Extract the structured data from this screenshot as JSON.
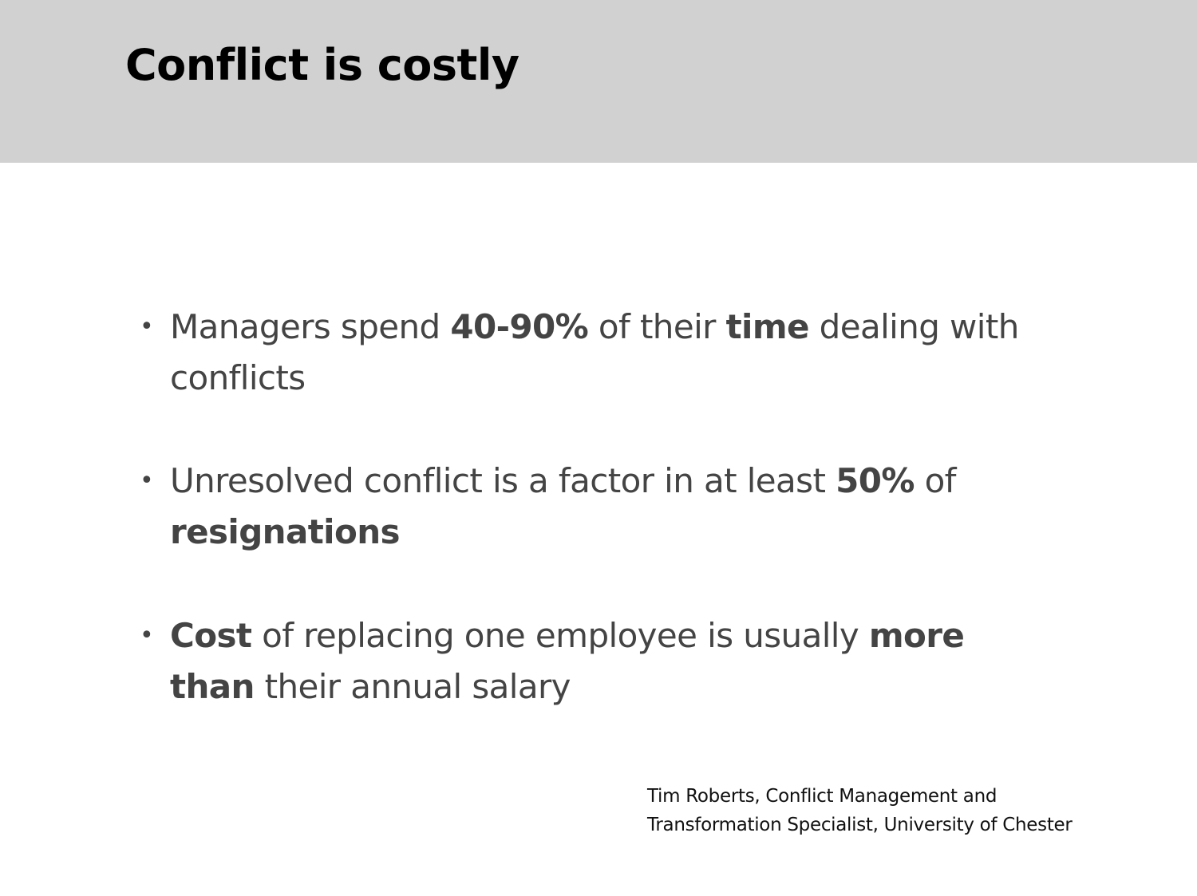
{
  "slide": {
    "title": "Conflict is costly",
    "header_color": "#d1d1d1",
    "bullets": [
      {
        "lines": [
          [
            {
              "t": "Managers spend ",
              "b": false
            },
            {
              "t": "40-90%",
              "b": true
            },
            {
              "t": " of their ",
              "b": false
            },
            {
              "t": "time",
              "b": true
            },
            {
              "t": " dealing with",
              "b": false
            }
          ],
          [
            {
              "t": "conflicts",
              "b": false
            }
          ]
        ]
      },
      {
        "lines": [
          [
            {
              "t": "Unresolved conflict is a factor in at least ",
              "b": false
            },
            {
              "t": "50%",
              "b": true
            },
            {
              "t": " of",
              "b": false
            }
          ],
          [
            {
              "t": "resignations",
              "b": true
            }
          ]
        ]
      },
      {
        "lines": [
          [
            {
              "t": "Cost",
              "b": true
            },
            {
              "t": " of replacing one employee is usually ",
              "b": false
            },
            {
              "t": "more",
              "b": true
            }
          ],
          [
            {
              "t": "than",
              "b": true
            },
            {
              "t": " their annual salary",
              "b": false
            }
          ]
        ]
      }
    ],
    "citation": [
      "Tim Roberts, Conflict Management and",
      "Transformation Specialist, University of Chester"
    ]
  }
}
